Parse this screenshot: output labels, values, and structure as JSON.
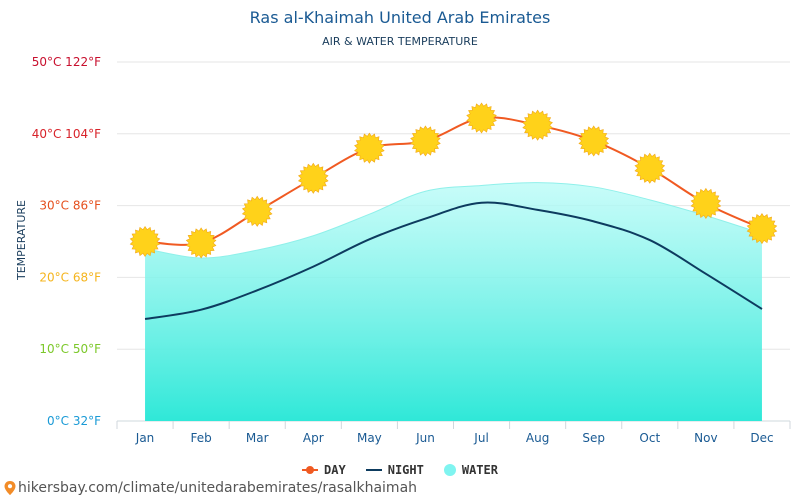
{
  "header": {
    "title": "Ras al-Khaimah United Arab Emirates",
    "subtitle": "AIR & WATER TEMPERATURE"
  },
  "source": {
    "url_text": "hikersbay.com/climate/unitedarabemirates/rasalkhaimah"
  },
  "legend": {
    "day": "DAY",
    "night": "NIGHT",
    "water": "WATER"
  },
  "colors": {
    "day": "#f05a22",
    "night": "#0d3b5f",
    "water_top": "#b6fbf7",
    "water_bottom": "#2fe8d8",
    "sun": "#ffd21a",
    "title": "#1a5a93"
  },
  "chart_data": {
    "type": "line",
    "ylabel": "TEMPERATURE",
    "ylim": [
      0,
      50
    ],
    "categories": [
      "Jan",
      "Feb",
      "Mar",
      "Apr",
      "May",
      "Jun",
      "Jul",
      "Aug",
      "Sep",
      "Oct",
      "Nov",
      "Dec"
    ],
    "y_ticks": [
      {
        "value": 0,
        "label": "0°C 32°F",
        "color": "#1a9ad6"
      },
      {
        "value": 10,
        "label": "10°C 50°F",
        "color": "#7cc82a"
      },
      {
        "value": 20,
        "label": "20°C 68°F",
        "color": "#f5b51e"
      },
      {
        "value": 30,
        "label": "30°C 86°F",
        "color": "#e5501e"
      },
      {
        "value": 40,
        "label": "40°C 104°F",
        "color": "#d8232a"
      },
      {
        "value": 50,
        "label": "50°C 122°F",
        "color": "#c8102e"
      }
    ],
    "grid": true,
    "series": [
      {
        "name": "DAY",
        "values": [
          25,
          24.8,
          29.2,
          33.8,
          38,
          39,
          42.2,
          41.2,
          39,
          35.2,
          30.3,
          26.8
        ]
      },
      {
        "name": "NIGHT",
        "values": [
          14.2,
          15.5,
          18.2,
          21.5,
          25.3,
          28.2,
          30.4,
          29.4,
          27.8,
          25.2,
          20.5,
          15.6
        ]
      },
      {
        "name": "WATER",
        "values": [
          24,
          22.7,
          23.8,
          25.8,
          28.8,
          32,
          32.8,
          33.2,
          32.6,
          30.8,
          28.6,
          26.1
        ]
      }
    ]
  }
}
